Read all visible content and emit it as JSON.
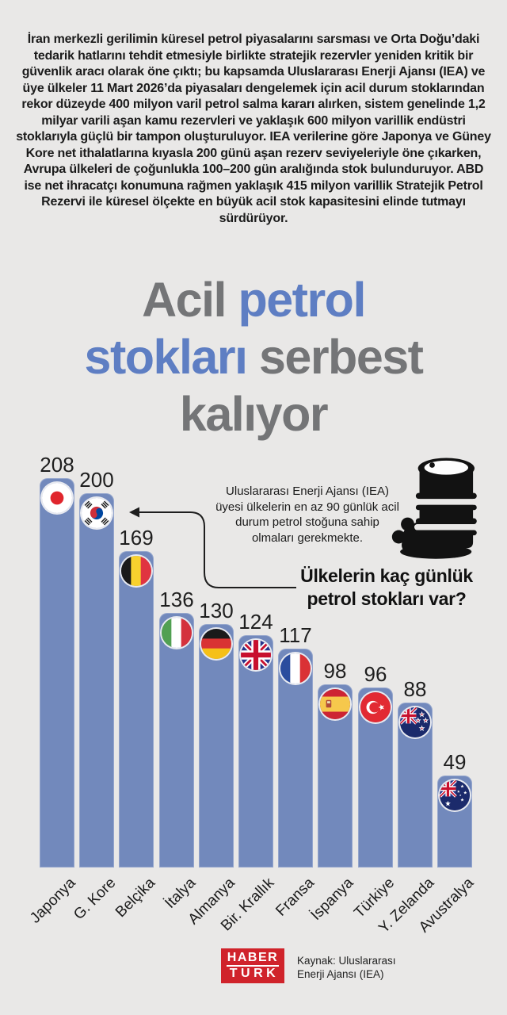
{
  "colors": {
    "background": "#e9e8e7",
    "bar": "#7289bc",
    "title_blue": "#5e7ec3",
    "title_gray": "#747577",
    "text": "#1b1b1b",
    "logo_red": "#d0232b"
  },
  "intro": {
    "text": "İran merkezli gerilimin küresel petrol piyasalarını sarsması ve Orta Doğu’daki tedarik hatlarını tehdit etmesiyle birlikte stratejik rezervler yeniden kritik bir güvenlik aracı olarak öne çıktı; bu kapsamda Uluslararası Enerji Ajansı (IEA) ve üye ülkeler 11 Mart 2026’da piyasaları dengelemek için acil durum stoklarından rekor düzeyde 400 milyon varil petrol salma kararı alırken, sistem genelinde 1,2 milyar varili aşan kamu rezervleri ve yaklaşık 600 milyon varillik endüstri stoklarıyla güçlü bir tampon oluşturuluyor. IEA verilerine göre Japonya ve Güney Kore net ithalatlarına kıyasla 200 günü aşan rezerv seviyeleriyle öne çıkarken, Avrupa ülkeleri de çoğunlukla 100–200 gün aralığında stok bulunduruyor. ABD ise net ihracatçı konumuna rağmen yaklaşık 415 milyon varillik Stratejik Petrol Rezervi ile küresel ölçekte en büyük acil stok kapasitesini elinde tutmayı sürdürüyor."
  },
  "title": {
    "lines": [
      [
        {
          "t": "Acil ",
          "c": "gray"
        },
        {
          "t": "petrol",
          "c": "blue"
        }
      ],
      [
        {
          "t": "stokları",
          "c": "blue"
        },
        {
          "t": " serbest",
          "c": "gray"
        }
      ],
      [
        {
          "t": "kalıyor",
          "c": "gray"
        }
      ]
    ]
  },
  "chart_data": {
    "type": "bar",
    "title": "Ülkelerin kaç günlük petrol stokları var?",
    "annotation": "Uluslararası Enerji Ajansı (IEA) üyesi ülkelerin en az 90 günlük acil durum petrol stoğuna sahip olmaları gerekmekte.",
    "categories": [
      "Japonya",
      "G. Kore",
      "Belçika",
      "İtalya",
      "Almanya",
      "Bir. Krallık",
      "Fransa",
      "İspanya",
      "Türkiye",
      "Y. Zelanda",
      "Avustralya"
    ],
    "values": [
      208,
      200,
      169,
      136,
      130,
      124,
      117,
      98,
      96,
      88,
      49
    ],
    "flags": [
      "jp",
      "kr",
      "be",
      "it",
      "de",
      "gb",
      "fr",
      "es",
      "tr",
      "nz",
      "au"
    ],
    "unit": "gün",
    "ylim": [
      0,
      220
    ],
    "grid": false,
    "legend": false,
    "bar_color": "#7289bc"
  },
  "footer": {
    "logo_line1": "HABER",
    "logo_line2": "TURK",
    "source_line1": "Kaynak: Uluslararası",
    "source_line2": "Enerji Ajansı (IEA)"
  }
}
